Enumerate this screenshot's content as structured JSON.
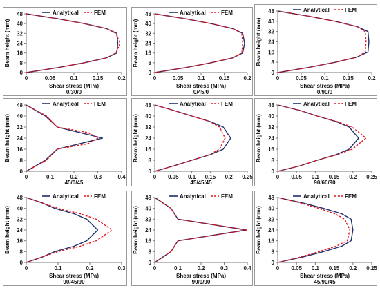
{
  "legend": {
    "analytical": "Analytical",
    "fem": "FEM"
  },
  "colors": {
    "analytical": "#1f2f6b",
    "fem": "#e8141b"
  },
  "chart_data": [
    {
      "type": "line",
      "caption": "0/30/0",
      "xlabel": "Shear stress (MPa)",
      "ylabel": "Beam height (mm)",
      "xlim": [
        0,
        0.2
      ],
      "ylim": [
        0,
        48
      ],
      "xticks": [
        "0",
        "0.05",
        "0.1",
        "0.15",
        "0.2"
      ],
      "xtick_values": [
        0,
        0.05,
        0.1,
        0.15,
        0.2
      ],
      "yticks": [
        "0",
        "8",
        "16",
        "24",
        "32",
        "40",
        "48"
      ],
      "ytick_values": [
        0,
        8,
        16,
        24,
        32,
        40,
        48
      ],
      "legend_position": "top-center",
      "series": [
        {
          "name": "Analytical",
          "style": "solid",
          "x": [
            0,
            0.066,
            0.122,
            0.168,
            0.19,
            0.192,
            0.19,
            0.168,
            0.122,
            0.066,
            0
          ],
          "y": [
            0,
            4,
            8,
            12,
            16,
            24,
            32,
            36,
            40,
            44,
            48
          ]
        },
        {
          "name": "FEM",
          "style": "dashed",
          "x": [
            0,
            0.066,
            0.122,
            0.168,
            0.188,
            0.197,
            0.188,
            0.168,
            0.122,
            0.066,
            0
          ],
          "y": [
            0,
            4,
            8,
            12,
            16,
            24,
            32,
            36,
            40,
            44,
            48
          ]
        }
      ]
    },
    {
      "type": "line",
      "caption": "0/45/0",
      "xlabel": "Shear stress (MPa)",
      "ylabel": "Beam height (mm)",
      "xlim": [
        0,
        0.2
      ],
      "ylim": [
        0,
        48
      ],
      "xticks": [
        "0",
        "0.05",
        "0.1",
        "0.15",
        "0.2"
      ],
      "xtick_values": [
        0,
        0.05,
        0.1,
        0.15,
        0.2
      ],
      "yticks": [
        "0",
        "8",
        "16",
        "24",
        "32",
        "40",
        "48"
      ],
      "ytick_values": [
        0,
        8,
        16,
        24,
        32,
        40,
        48
      ],
      "legend_position": "top-center",
      "series": [
        {
          "name": "Analytical",
          "style": "solid",
          "x": [
            0,
            0.066,
            0.122,
            0.168,
            0.19,
            0.194,
            0.19,
            0.168,
            0.122,
            0.066,
            0
          ],
          "y": [
            0,
            4,
            8,
            12,
            16,
            24,
            32,
            36,
            40,
            44,
            48
          ]
        },
        {
          "name": "FEM",
          "style": "dashed",
          "x": [
            0,
            0.066,
            0.122,
            0.168,
            0.188,
            0.19,
            0.188,
            0.168,
            0.122,
            0.066,
            0
          ],
          "y": [
            0,
            4,
            8,
            12,
            16,
            24,
            32,
            36,
            40,
            44,
            48
          ]
        }
      ]
    },
    {
      "type": "line",
      "caption": "0/90/0",
      "xlabel": "Shear stress (MPa)",
      "ylabel": "Beam height (mm)",
      "xlim": [
        0,
        0.2
      ],
      "ylim": [
        0,
        48
      ],
      "xticks": [
        "0",
        "0.05",
        "0.1",
        "0.15",
        "0.2"
      ],
      "xtick_values": [
        0,
        0.05,
        0.1,
        0.15,
        0.2
      ],
      "yticks": [
        "0",
        "8",
        "16",
        "24",
        "32",
        "40",
        "48"
      ],
      "ytick_values": [
        0,
        8,
        16,
        24,
        32,
        40,
        48
      ],
      "legend_position": "top-center",
      "series": [
        {
          "name": "Analytical",
          "style": "solid",
          "x": [
            0,
            0.066,
            0.122,
            0.168,
            0.192,
            0.194,
            0.192,
            0.168,
            0.122,
            0.066,
            0
          ],
          "y": [
            0,
            4,
            8,
            12,
            16,
            24,
            32,
            36,
            40,
            44,
            48
          ]
        },
        {
          "name": "FEM",
          "style": "dashed",
          "x": [
            0,
            0.066,
            0.122,
            0.168,
            0.186,
            0.188,
            0.186,
            0.168,
            0.122,
            0.066,
            0
          ],
          "y": [
            0,
            4,
            8,
            12,
            16,
            24,
            32,
            36,
            40,
            44,
            48
          ]
        }
      ]
    },
    {
      "type": "line",
      "caption": "45/0/45",
      "xlabel": "",
      "ylabel": "Beam height (mm)",
      "xlim": [
        0,
        0.4
      ],
      "ylim": [
        0,
        48
      ],
      "xticks": [
        "0",
        "0.1",
        "0.2",
        "0.3",
        "0.4"
      ],
      "xtick_values": [
        0,
        0.1,
        0.2,
        0.3,
        0.4
      ],
      "yticks": [
        "0",
        "8",
        "16",
        "24",
        "32",
        "40",
        "48"
      ],
      "ytick_values": [
        0,
        8,
        16,
        24,
        32,
        40,
        48
      ],
      "legend_position": "top-center",
      "series": [
        {
          "name": "Analytical",
          "style": "solid",
          "x": [
            0,
            0.08,
            0.13,
            0.32,
            0.13,
            0.08,
            0
          ],
          "y": [
            0,
            8,
            16,
            24,
            32,
            40,
            48
          ]
        },
        {
          "name": "FEM",
          "style": "dashed",
          "x": [
            0,
            0.085,
            0.13,
            0.26,
            0.3,
            0.26,
            0.13,
            0.085,
            0
          ],
          "y": [
            0,
            8,
            16,
            20,
            24,
            28,
            32,
            40,
            48
          ]
        }
      ]
    },
    {
      "type": "line",
      "caption": "45/45/45",
      "xlabel": "",
      "ylabel": "Beam height (mm)",
      "xlim": [
        0,
        0.25
      ],
      "ylim": [
        0,
        48
      ],
      "xticks": [
        "0",
        "0.05",
        "0.1",
        "0.15",
        "0.2",
        "0.25"
      ],
      "xtick_values": [
        0,
        0.05,
        0.1,
        0.15,
        0.2,
        0.25
      ],
      "yticks": [
        "0",
        "8",
        "16",
        "24",
        "32",
        "40",
        "48"
      ],
      "ytick_values": [
        0,
        8,
        16,
        24,
        32,
        40,
        48
      ],
      "legend_position": "top-center",
      "series": [
        {
          "name": "Analytical",
          "style": "solid",
          "x": [
            0,
            0.052,
            0.1,
            0.15,
            0.185,
            0.205,
            0.185,
            0.15,
            0.1,
            0.052,
            0
          ],
          "y": [
            0,
            4,
            8,
            12,
            16,
            24,
            32,
            36,
            40,
            44,
            48
          ]
        },
        {
          "name": "FEM",
          "style": "dashed",
          "x": [
            0,
            0.052,
            0.1,
            0.148,
            0.175,
            0.19,
            0.175,
            0.148,
            0.1,
            0.052,
            0
          ],
          "y": [
            0,
            4,
            8,
            12,
            16,
            24,
            32,
            36,
            40,
            44,
            48
          ]
        }
      ]
    },
    {
      "type": "line",
      "caption": "90/60/90",
      "xlabel": "",
      "ylabel": "Beam height (mm)",
      "xlim": [
        0,
        0.25
      ],
      "ylim": [
        0,
        48
      ],
      "xticks": [
        "0",
        "0.05",
        "0.1",
        "0.15",
        "0.2",
        "0.25"
      ],
      "xtick_values": [
        0,
        0.05,
        0.1,
        0.15,
        0.2,
        0.25
      ],
      "yticks": [
        "0",
        "8",
        "16",
        "24",
        "32",
        "40",
        "48"
      ],
      "ytick_values": [
        0,
        8,
        16,
        24,
        32,
        40,
        48
      ],
      "legend_position": "top-center",
      "series": [
        {
          "name": "Analytical",
          "style": "solid",
          "x": [
            0,
            0.06,
            0.105,
            0.155,
            0.19,
            0.215,
            0.19,
            0.155,
            0.105,
            0.06,
            0
          ],
          "y": [
            0,
            4,
            8,
            12,
            16,
            24,
            32,
            36,
            40,
            44,
            48
          ]
        },
        {
          "name": "FEM",
          "style": "dashed",
          "x": [
            0,
            0.06,
            0.105,
            0.158,
            0.198,
            0.235,
            0.198,
            0.158,
            0.105,
            0.06,
            0
          ],
          "y": [
            0,
            4,
            8,
            12,
            16,
            24,
            32,
            36,
            40,
            44,
            48
          ]
        }
      ]
    },
    {
      "type": "line",
      "caption": "90/45/90",
      "xlabel": "Shear stress (MPa)",
      "ylabel": "Beam height (mm)",
      "xlim": [
        0,
        0.3
      ],
      "ylim": [
        0,
        48
      ],
      "xticks": [
        "0",
        "0.1",
        "0.2",
        "0.3"
      ],
      "xtick_values": [
        0,
        0.1,
        0.2,
        0.3
      ],
      "yticks": [
        "0",
        "8",
        "16",
        "24",
        "32",
        "40",
        "48"
      ],
      "ytick_values": [
        0,
        8,
        16,
        24,
        32,
        40,
        48
      ],
      "legend_position": "top-center",
      "series": [
        {
          "name": "Analytical",
          "style": "solid",
          "x": [
            0,
            0.05,
            0.09,
            0.15,
            0.19,
            0.225,
            0.19,
            0.15,
            0.09,
            0.05,
            0
          ],
          "y": [
            0,
            4,
            8,
            12,
            16,
            24,
            32,
            36,
            40,
            44,
            48
          ]
        },
        {
          "name": "FEM",
          "style": "dashed",
          "x": [
            0,
            0.05,
            0.1,
            0.17,
            0.22,
            0.27,
            0.22,
            0.17,
            0.1,
            0.05,
            0
          ],
          "y": [
            0,
            4,
            8,
            12,
            16,
            24,
            32,
            36,
            40,
            44,
            48
          ]
        }
      ]
    },
    {
      "type": "line",
      "caption": "90/0/90",
      "xlabel": "Shear stress (MPa)",
      "ylabel": "Beam height (mm)",
      "xlim": [
        0,
        0.4
      ],
      "ylim": [
        0,
        48
      ],
      "xticks": [
        "0",
        "0.1",
        "0.2",
        "0.3",
        "0.4"
      ],
      "xtick_values": [
        0,
        0.1,
        0.2,
        0.3,
        0.4
      ],
      "yticks": [
        "0",
        "8",
        "16",
        "24",
        "32",
        "40",
        "48"
      ],
      "ytick_values": [
        0,
        8,
        16,
        24,
        32,
        40,
        48
      ],
      "legend_position": "top-center",
      "series": [
        {
          "name": "Analytical",
          "style": "solid",
          "x": [
            0,
            0.07,
            0.1,
            0.395,
            0.1,
            0.07,
            0
          ],
          "y": [
            0,
            8,
            16,
            24,
            32,
            40,
            48
          ]
        },
        {
          "name": "FEM",
          "style": "dashed",
          "x": [
            0,
            0.07,
            0.1,
            0.4,
            0.1,
            0.07,
            0
          ],
          "y": [
            0,
            8,
            16,
            24,
            32,
            40,
            48
          ]
        }
      ]
    },
    {
      "type": "line",
      "caption": "45/90/45",
      "xlabel": "Shear stress (MPa)",
      "ylabel": "Beam height (mm)",
      "xlim": [
        0,
        0.25
      ],
      "ylim": [
        0,
        48
      ],
      "xticks": [
        "0",
        "0.05",
        "0.1",
        "0.15",
        "0.2",
        "0.25"
      ],
      "xtick_values": [
        0,
        0.05,
        0.1,
        0.15,
        0.2,
        0.25
      ],
      "yticks": [
        "0",
        "8",
        "16",
        "24",
        "32",
        "40",
        "48"
      ],
      "ytick_values": [
        0,
        8,
        16,
        24,
        32,
        40,
        48
      ],
      "legend_position": "top-center",
      "series": [
        {
          "name": "Analytical",
          "style": "solid",
          "x": [
            0,
            0.066,
            0.122,
            0.17,
            0.195,
            0.2,
            0.195,
            0.17,
            0.122,
            0.066,
            0
          ],
          "y": [
            0,
            4,
            8,
            12,
            16,
            24,
            32,
            36,
            40,
            44,
            48
          ]
        },
        {
          "name": "FEM",
          "style": "dashed",
          "x": [
            0,
            0.06,
            0.11,
            0.155,
            0.185,
            0.192,
            0.178,
            0.152,
            0.11,
            0.06,
            0
          ],
          "y": [
            0,
            4,
            8,
            12,
            16,
            24,
            32,
            36,
            40,
            44,
            48
          ]
        }
      ]
    }
  ]
}
